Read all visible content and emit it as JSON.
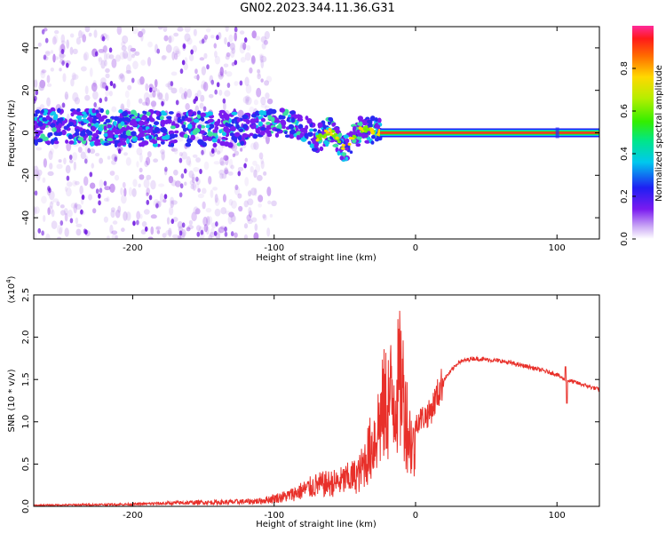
{
  "title": "GN02.2023.344.11.36.G31",
  "chart_data": [
    {
      "type": "heatmap",
      "xlabel": "Height of straight line (km)",
      "ylabel": "Frequency (Hz)",
      "xlim": [
        -270,
        130
      ],
      "ylim": [
        -50,
        50
      ],
      "xticks": [
        -200,
        -100,
        0,
        100
      ],
      "yticks": [
        -40,
        -20,
        0,
        20,
        40
      ],
      "colorbar": {
        "label": "Normalized spectral amplitude",
        "range": [
          0,
          1
        ],
        "ticks": [
          "0.0",
          "0.2",
          "0.4",
          "0.6",
          "0.8"
        ]
      },
      "ridge": [
        {
          "x": -240,
          "y": 3
        },
        {
          "x": -200,
          "y": 2
        },
        {
          "x": -160,
          "y": 2
        },
        {
          "x": -130,
          "y": 2
        },
        {
          "x": -110,
          "y": 4
        },
        {
          "x": -95,
          "y": 5
        },
        {
          "x": -80,
          "y": 3
        },
        {
          "x": -70,
          "y": -3
        },
        {
          "x": -60,
          "y": 1
        },
        {
          "x": -50,
          "y": -8
        },
        {
          "x": -45,
          "y": -3
        },
        {
          "x": -38,
          "y": 2
        },
        {
          "x": -25,
          "y": 0
        },
        {
          "x": 0,
          "y": 0
        },
        {
          "x": 130,
          "y": 0
        }
      ],
      "tone_band": {
        "x_from": -25,
        "x_to": 130,
        "y": 0
      }
    },
    {
      "type": "line",
      "xlabel": "Height of straight line (km)",
      "ylabel": "SNR (10 * v/v)",
      "y_multiplier_label": "(x10",
      "y_multiplier_exp": "4",
      "y_multiplier_close": ")",
      "xlim": [
        -270,
        130
      ],
      "ylim": [
        0,
        2.5
      ],
      "xticks": [
        -200,
        -100,
        0,
        100
      ],
      "yticks": [
        "0.0",
        "0.5",
        "1.0",
        "1.5",
        "2.0",
        "2.5"
      ],
      "color": "#e8302a",
      "envelope": [
        {
          "x": -270,
          "y": 0.02
        },
        {
          "x": -200,
          "y": 0.04
        },
        {
          "x": -160,
          "y": 0.07
        },
        {
          "x": -130,
          "y": 0.08
        },
        {
          "x": -110,
          "y": 0.1
        },
        {
          "x": -90,
          "y": 0.2
        },
        {
          "x": -70,
          "y": 0.4
        },
        {
          "x": -55,
          "y": 0.45
        },
        {
          "x": -40,
          "y": 0.6
        },
        {
          "x": -30,
          "y": 1.2
        },
        {
          "x": -22,
          "y": 1.9
        },
        {
          "x": -15,
          "y": 2.1
        },
        {
          "x": -10,
          "y": 2.4
        },
        {
          "x": -5,
          "y": 1.4
        },
        {
          "x": 0,
          "y": 1.0
        },
        {
          "x": 10,
          "y": 1.1
        },
        {
          "x": 20,
          "y": 1.5
        },
        {
          "x": 30,
          "y": 1.7
        },
        {
          "x": 40,
          "y": 1.75
        },
        {
          "x": 60,
          "y": 1.72
        },
        {
          "x": 80,
          "y": 1.65
        },
        {
          "x": 100,
          "y": 1.56
        },
        {
          "x": 105,
          "y": 1.5
        },
        {
          "x": 110,
          "y": 1.48
        },
        {
          "x": 120,
          "y": 1.43
        },
        {
          "x": 130,
          "y": 1.38
        }
      ],
      "spikes": [
        {
          "x": 107,
          "y": 1.22
        },
        {
          "x": 106,
          "y": 1.65
        }
      ]
    }
  ]
}
